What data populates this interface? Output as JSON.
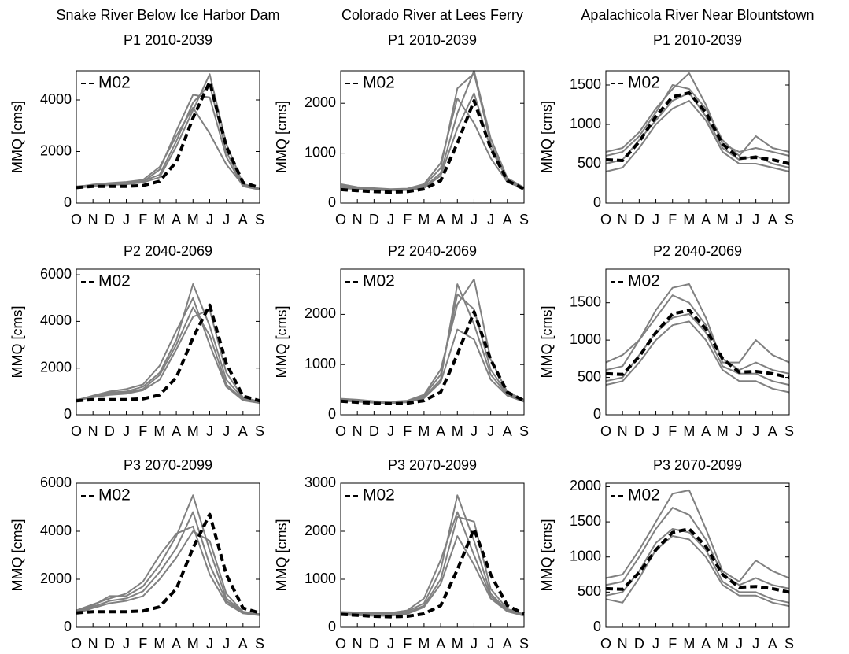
{
  "chart_data": [
    {
      "type": "line",
      "column_title": "Snake River Below Ice Harbor Dam",
      "title": "P1 2010-2039",
      "ylabel": "MMQ [cms]",
      "legend": "upper left",
      "categories": [
        "O",
        "N",
        "D",
        "J",
        "F",
        "M",
        "A",
        "M",
        "J",
        "J",
        "A",
        "S"
      ],
      "ylim": [
        0,
        5130
      ],
      "yticks": [
        0,
        2000,
        4000
      ],
      "series": [
        {
          "name": "M02",
          "color": "#000000",
          "dashed": true,
          "values": [
            600,
            650,
            650,
            650,
            680,
            850,
            1600,
            3300,
            4700,
            2200,
            800,
            600
          ]
        },
        {
          "color": "#808080",
          "values": [
            600,
            700,
            750,
            780,
            850,
            1100,
            2400,
            3900,
            4600,
            2000,
            700,
            550
          ]
        },
        {
          "color": "#808080",
          "values": [
            650,
            700,
            720,
            760,
            820,
            1300,
            2800,
            4200,
            4100,
            1800,
            650,
            520
          ]
        },
        {
          "color": "#808080",
          "values": [
            580,
            660,
            700,
            730,
            800,
            1000,
            2200,
            3600,
            5000,
            2300,
            750,
            560
          ]
        },
        {
          "color": "#808080",
          "values": [
            620,
            720,
            780,
            820,
            900,
            1400,
            2600,
            3700,
            2700,
            1500,
            700,
            540
          ]
        }
      ]
    },
    {
      "type": "line",
      "column_title": "Colorado River at Lees Ferry",
      "title": "P1 2010-2039",
      "ylabel": "MMQ [cms]",
      "legend": "upper left",
      "categories": [
        "O",
        "N",
        "D",
        "J",
        "F",
        "M",
        "A",
        "M",
        "J",
        "J",
        "A",
        "S"
      ],
      "ylim": [
        0,
        2650
      ],
      "yticks": [
        0,
        1000,
        2000
      ],
      "series": [
        {
          "name": "M02",
          "color": "#000000",
          "dashed": true,
          "values": [
            270,
            250,
            230,
            220,
            230,
            280,
            450,
            1200,
            2050,
            1100,
            450,
            280
          ]
        },
        {
          "color": "#808080",
          "values": [
            350,
            300,
            280,
            270,
            280,
            350,
            700,
            2300,
            2600,
            1200,
            450,
            300
          ]
        },
        {
          "color": "#808080",
          "values": [
            320,
            290,
            270,
            260,
            270,
            320,
            600,
            1800,
            2650,
            1300,
            500,
            310
          ]
        },
        {
          "color": "#808080",
          "values": [
            380,
            320,
            300,
            280,
            290,
            380,
            800,
            2100,
            1600,
            900,
            420,
            290
          ]
        },
        {
          "color": "#808080",
          "values": [
            300,
            280,
            260,
            250,
            260,
            300,
            550,
            1500,
            2200,
            1100,
            470,
            300
          ]
        }
      ]
    },
    {
      "type": "line",
      "column_title": "Apalachicola River Near Blountstown",
      "title": "P1 2010-2039",
      "ylabel": "MMQ [cms]",
      "legend": "upper left",
      "categories": [
        "O",
        "N",
        "D",
        "J",
        "F",
        "M",
        "A",
        "M",
        "J",
        "J",
        "A",
        "S"
      ],
      "ylim": [
        0,
        1680
      ],
      "yticks": [
        0,
        500,
        1000,
        1500
      ],
      "series": [
        {
          "name": "M02",
          "color": "#000000",
          "dashed": true,
          "values": [
            550,
            540,
            780,
            1100,
            1350,
            1400,
            1150,
            750,
            570,
            580,
            550,
            500
          ]
        },
        {
          "color": "#808080",
          "values": [
            650,
            700,
            900,
            1200,
            1450,
            1650,
            1250,
            750,
            650,
            700,
            650,
            600
          ]
        },
        {
          "color": "#808080",
          "values": [
            500,
            550,
            800,
            1050,
            1300,
            1400,
            1100,
            700,
            550,
            600,
            500,
            450
          ]
        },
        {
          "color": "#808080",
          "values": [
            600,
            650,
            850,
            1150,
            1500,
            1450,
            1200,
            800,
            600,
            850,
            700,
            650
          ]
        },
        {
          "color": "#808080",
          "values": [
            400,
            450,
            700,
            1000,
            1200,
            1300,
            1050,
            650,
            500,
            500,
            450,
            400
          ]
        }
      ]
    },
    {
      "type": "line",
      "title": "P2 2040-2069",
      "ylabel": "MMQ [cms]",
      "legend": "upper left",
      "categories": [
        "O",
        "N",
        "D",
        "J",
        "F",
        "M",
        "A",
        "M",
        "J",
        "J",
        "A",
        "S"
      ],
      "ylim": [
        0,
        6240
      ],
      "yticks": [
        0,
        2000,
        4000,
        6000
      ],
      "series": [
        {
          "name": "M02",
          "color": "#000000",
          "dashed": true,
          "values": [
            600,
            650,
            650,
            650,
            680,
            850,
            1600,
            3300,
            4700,
            2200,
            800,
            600
          ]
        },
        {
          "color": "#808080",
          "values": [
            600,
            800,
            950,
            1000,
            1200,
            1800,
            3200,
            5600,
            3800,
            1500,
            700,
            550
          ]
        },
        {
          "color": "#808080",
          "values": [
            650,
            750,
            850,
            900,
            1050,
            1500,
            2800,
            4200,
            4500,
            1800,
            750,
            560
          ]
        },
        {
          "color": "#808080",
          "values": [
            580,
            780,
            900,
            950,
            1100,
            1700,
            3000,
            4600,
            3400,
            1300,
            650,
            520
          ]
        },
        {
          "color": "#808080",
          "values": [
            620,
            820,
            1000,
            1100,
            1300,
            2100,
            3600,
            5000,
            3000,
            1200,
            620,
            500
          ]
        }
      ]
    },
    {
      "type": "line",
      "title": "P2 2040-2069",
      "ylabel": "MMQ [cms]",
      "legend": "upper left",
      "categories": [
        "O",
        "N",
        "D",
        "J",
        "F",
        "M",
        "A",
        "M",
        "J",
        "J",
        "A",
        "S"
      ],
      "ylim": [
        0,
        2900
      ],
      "yticks": [
        0,
        1000,
        2000
      ],
      "series": [
        {
          "name": "M02",
          "color": "#000000",
          "dashed": true,
          "values": [
            270,
            250,
            230,
            220,
            230,
            280,
            450,
            1200,
            2050,
            1100,
            450,
            280
          ]
        },
        {
          "color": "#808080",
          "values": [
            300,
            280,
            260,
            250,
            270,
            350,
            700,
            2600,
            1800,
            800,
            400,
            280
          ]
        },
        {
          "color": "#808080",
          "values": [
            320,
            300,
            270,
            260,
            280,
            400,
            900,
            2200,
            2700,
            1100,
            450,
            300
          ]
        },
        {
          "color": "#808080",
          "values": [
            280,
            260,
            240,
            230,
            250,
            330,
            650,
            1700,
            1500,
            700,
            380,
            260
          ]
        },
        {
          "color": "#808080",
          "values": [
            310,
            290,
            260,
            250,
            270,
            380,
            800,
            2400,
            2100,
            900,
            420,
            290
          ]
        }
      ]
    },
    {
      "type": "line",
      "title": "P2 2040-2069",
      "ylabel": "MMQ [cms]",
      "legend": "upper left",
      "categories": [
        "O",
        "N",
        "D",
        "J",
        "F",
        "M",
        "A",
        "M",
        "J",
        "J",
        "A",
        "S"
      ],
      "ylim": [
        0,
        1950
      ],
      "yticks": [
        0,
        500,
        1000,
        1500
      ],
      "series": [
        {
          "name": "M02",
          "color": "#000000",
          "dashed": true,
          "values": [
            550,
            540,
            780,
            1100,
            1350,
            1400,
            1150,
            750,
            570,
            580,
            550,
            500
          ]
        },
        {
          "color": "#808080",
          "values": [
            700,
            800,
            1000,
            1400,
            1700,
            1750,
            1300,
            700,
            700,
            1000,
            800,
            700
          ]
        },
        {
          "color": "#808080",
          "values": [
            450,
            500,
            800,
            1100,
            1300,
            1350,
            1100,
            650,
            550,
            550,
            450,
            400
          ]
        },
        {
          "color": "#808080",
          "values": [
            600,
            650,
            1000,
            1300,
            1600,
            1500,
            1200,
            750,
            600,
            700,
            600,
            550
          ]
        },
        {
          "color": "#808080",
          "values": [
            400,
            450,
            700,
            1000,
            1200,
            1250,
            1000,
            600,
            450,
            450,
            350,
            300
          ]
        }
      ]
    },
    {
      "type": "line",
      "title": "P3 2070-2099",
      "ylabel": "MMQ [cms]",
      "legend": "upper left",
      "categories": [
        "O",
        "N",
        "D",
        "J",
        "F",
        "M",
        "A",
        "M",
        "J",
        "J",
        "A",
        "S"
      ],
      "ylim": [
        0,
        6000
      ],
      "yticks": [
        0,
        2000,
        4000,
        6000
      ],
      "series": [
        {
          "name": "M02",
          "color": "#000000",
          "dashed": true,
          "values": [
            600,
            650,
            650,
            650,
            680,
            850,
            1600,
            3300,
            4700,
            2200,
            800,
            600
          ]
        },
        {
          "color": "#808080",
          "values": [
            650,
            900,
            1300,
            1300,
            1700,
            2600,
            3800,
            5500,
            3200,
            1200,
            650,
            550
          ]
        },
        {
          "color": "#808080",
          "values": [
            600,
            850,
            1100,
            1200,
            1500,
            2300,
            3300,
            4800,
            2600,
            1100,
            600,
            520
          ]
        },
        {
          "color": "#808080",
          "values": [
            700,
            950,
            1200,
            1400,
            1900,
            3000,
            3900,
            4200,
            2200,
            1000,
            580,
            500
          ]
        },
        {
          "color": "#808080",
          "values": [
            580,
            800,
            1000,
            1100,
            1300,
            2000,
            2900,
            4000,
            3600,
            1400,
            650,
            540
          ]
        }
      ]
    },
    {
      "type": "line",
      "title": "P3 2070-2099",
      "ylabel": "MMQ [cms]",
      "legend": "upper left",
      "categories": [
        "O",
        "N",
        "D",
        "J",
        "F",
        "M",
        "A",
        "M",
        "J",
        "J",
        "A",
        "S"
      ],
      "ylim": [
        0,
        3000
      ],
      "yticks": [
        0,
        1000,
        2000,
        3000
      ],
      "series": [
        {
          "name": "M02",
          "color": "#000000",
          "dashed": true,
          "values": [
            270,
            250,
            230,
            220,
            230,
            280,
            450,
            1200,
            2050,
            1100,
            450,
            280
          ]
        },
        {
          "color": "#808080",
          "values": [
            300,
            300,
            290,
            290,
            330,
            500,
            1200,
            2750,
            1800,
            700,
            350,
            250
          ]
        },
        {
          "color": "#808080",
          "values": [
            280,
            270,
            260,
            260,
            300,
            450,
            1000,
            2300,
            2200,
            800,
            380,
            270
          ]
        },
        {
          "color": "#808080",
          "values": [
            260,
            250,
            240,
            240,
            280,
            420,
            900,
            1900,
            1300,
            600,
            330,
            240
          ]
        },
        {
          "color": "#808080",
          "values": [
            320,
            310,
            300,
            300,
            350,
            600,
            1400,
            2400,
            1500,
            650,
            340,
            250
          ]
        }
      ]
    },
    {
      "type": "line",
      "title": "P3 2070-2099",
      "ylabel": "MMQ [cms]",
      "legend": "upper left",
      "categories": [
        "O",
        "N",
        "D",
        "J",
        "F",
        "M",
        "A",
        "M",
        "J",
        "J",
        "A",
        "S"
      ],
      "ylim": [
        0,
        2050
      ],
      "yticks": [
        0,
        500,
        1000,
        1500,
        2000
      ],
      "series": [
        {
          "name": "M02",
          "color": "#000000",
          "dashed": true,
          "values": [
            550,
            540,
            780,
            1100,
            1350,
            1400,
            1150,
            750,
            570,
            580,
            550,
            500
          ]
        },
        {
          "color": "#808080",
          "values": [
            700,
            750,
            1100,
            1500,
            1900,
            1950,
            1400,
            800,
            650,
            950,
            800,
            700
          ]
        },
        {
          "color": "#808080",
          "values": [
            450,
            500,
            800,
            1200,
            1400,
            1350,
            1100,
            650,
            500,
            500,
            400,
            350
          ]
        },
        {
          "color": "#808080",
          "values": [
            600,
            650,
            1000,
            1400,
            1700,
            1600,
            1250,
            750,
            600,
            700,
            600,
            550
          ]
        },
        {
          "color": "#808080",
          "values": [
            400,
            350,
            700,
            1100,
            1300,
            1250,
            1000,
            600,
            450,
            450,
            350,
            300
          ]
        }
      ]
    }
  ]
}
